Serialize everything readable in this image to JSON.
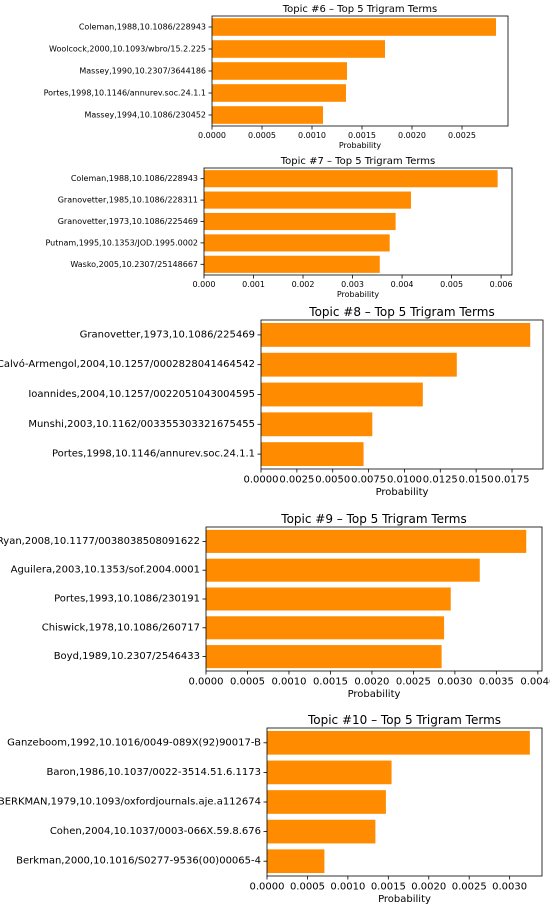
{
  "chart_data": [
    {
      "type": "bar",
      "orientation": "horizontal",
      "title": "Topic #6 – Top 5 Trigram Terms",
      "xlabel": "Probability",
      "categories": [
        "Coleman,1988,10.1086/228943",
        "Woolcock,2000,10.1093/wbro/15.2.225",
        "Massey,1990,10.2307/3644186",
        "Portes,1998,10.1146/annurev.soc.24.1.1",
        "Massey,1994,10.1086/230452"
      ],
      "values": [
        0.00284,
        0.00173,
        0.00135,
        0.00134,
        0.00111
      ],
      "xlim": [
        0,
        0.00296
      ],
      "xticks": [
        0,
        0.0005,
        0.001,
        0.0015,
        0.002,
        0.0025
      ],
      "xtick_labels": [
        "0.0000",
        "0.0005",
        "0.0010",
        "0.0015",
        "0.0020",
        "0.0025"
      ],
      "bar_color": "#ff8c00"
    },
    {
      "type": "bar",
      "orientation": "horizontal",
      "title": "Topic #7 – Top 5 Trigram Terms",
      "xlabel": "Probability",
      "categories": [
        "Coleman,1988,10.1086/228943",
        "Granovetter,1985,10.1086/228311",
        "Granovetter,1973,10.1086/225469",
        "Putnam,1995,10.1353/JOD.1995.0002",
        "Wasko,2005,10.2307/25148667"
      ],
      "values": [
        0.00593,
        0.00418,
        0.00387,
        0.00375,
        0.00355
      ],
      "xlim": [
        0,
        0.00622
      ],
      "xticks": [
        0,
        0.001,
        0.002,
        0.003,
        0.004,
        0.005,
        0.006
      ],
      "xtick_labels": [
        "0.000",
        "0.001",
        "0.002",
        "0.003",
        "0.004",
        "0.005",
        "0.006"
      ],
      "bar_color": "#ff8c00"
    },
    {
      "type": "bar",
      "orientation": "horizontal",
      "title": "Topic #8 – Top 5 Trigram Terms",
      "xlabel": "Probability",
      "categories": [
        "Granovetter,1973,10.1086/225469",
        "Calvó-Armengol,2004,10.1257/0002828041464542",
        "Ioannides,2004,10.1257/0022051043004595",
        "Munshi,2003,10.1162/003355303321675455",
        "Portes,1998,10.1146/annurev.soc.24.1.1"
      ],
      "values": [
        0.01877,
        0.01365,
        0.01128,
        0.00776,
        0.00715
      ],
      "xlim": [
        0,
        0.01966
      ],
      "xticks": [
        0,
        0.0025,
        0.005,
        0.0075,
        0.01,
        0.0125,
        0.015,
        0.0175
      ],
      "xtick_labels": [
        "0.0000",
        "0.0025",
        "0.0050",
        "0.0075",
        "0.0100",
        "0.0125",
        "0.0150",
        "0.0175"
      ],
      "bar_color": "#ff8c00"
    },
    {
      "type": "bar",
      "orientation": "horizontal",
      "title": "Topic #9 – Top 5 Trigram Terms",
      "xlabel": "Probability",
      "categories": [
        "Ryan,2008,10.1177/0038038508091622",
        "Aguilera,2003,10.1353/sof.2004.0001",
        "Portes,1993,10.1086/230191",
        "Chiswick,1978,10.1086/260717",
        "Boyd,1989,10.2307/2546433"
      ],
      "values": [
        0.00386,
        0.0033,
        0.00295,
        0.00287,
        0.00284
      ],
      "xlim": [
        0,
        0.00405
      ],
      "xticks": [
        0,
        0.0005,
        0.001,
        0.0015,
        0.002,
        0.0025,
        0.003,
        0.0035,
        0.004
      ],
      "xtick_labels": [
        "0.0000",
        "0.0005",
        "0.0010",
        "0.0015",
        "0.0020",
        "0.0025",
        "0.0030",
        "0.0035",
        "0.0040"
      ],
      "bar_color": "#ff8c00"
    },
    {
      "type": "bar",
      "orientation": "horizontal",
      "title": "Topic #10 – Top 5 Trigram Terms",
      "xlabel": "Probability",
      "categories": [
        "Ganzeboom,1992,10.1016/0049-089X(92)90017-B",
        "Baron,1986,10.1037/0022-3514.51.6.1173",
        "BERKMAN,1979,10.1093/oxfordjournals.aje.a112674",
        "Cohen,2004,10.1037/0003-066X.59.8.676",
        "Berkman,2000,10.1016/S0277-9536(00)00065-4"
      ],
      "values": [
        0.00325,
        0.00154,
        0.00147,
        0.00134,
        0.00071
      ],
      "xlim": [
        0,
        0.0034
      ],
      "xticks": [
        0,
        0.0005,
        0.001,
        0.0015,
        0.002,
        0.0025,
        0.003
      ],
      "xtick_labels": [
        "0.0000",
        "0.0005",
        "0.0010",
        "0.0015",
        "0.0020",
        "0.0025",
        "0.0030"
      ],
      "bar_color": "#ff8c00"
    }
  ]
}
